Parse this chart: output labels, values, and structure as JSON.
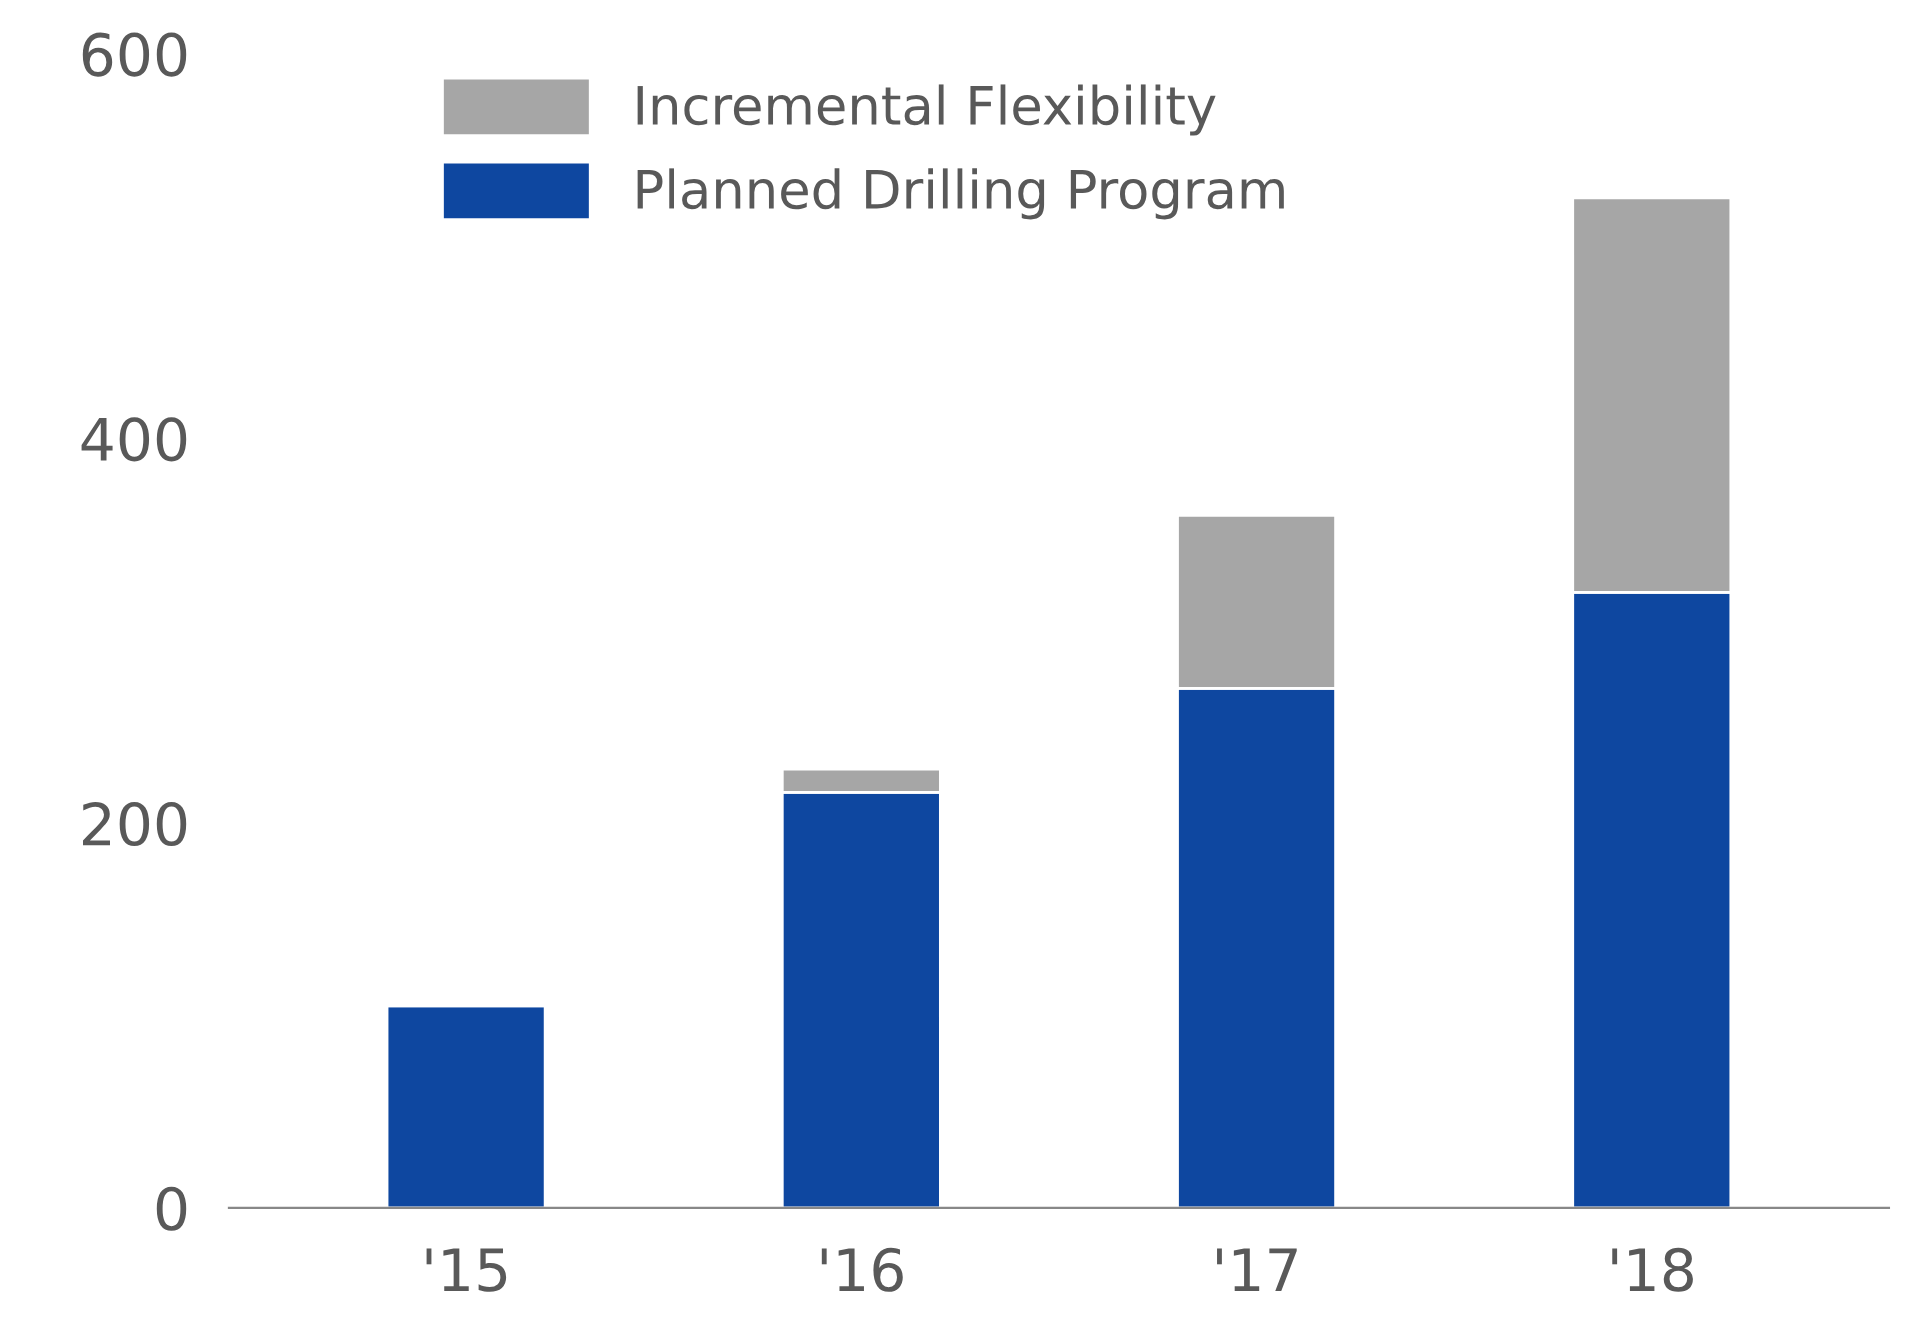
{
  "chart_data": {
    "type": "bar",
    "stacked": true,
    "categories": [
      "'15",
      "'16",
      "'17",
      "'18"
    ],
    "series": [
      {
        "name": "Planned Drilling Program",
        "color": "#0e47a0",
        "values": [
          105,
          216,
          270,
          320
        ]
      },
      {
        "name": "Incremental Flexibility",
        "color": "#a6a6a6",
        "values": [
          null,
          12,
          90,
          205
        ]
      }
    ],
    "ylim": [
      0,
      600
    ],
    "yticks": [
      0,
      200,
      400,
      600
    ],
    "grid": false,
    "legend": "top left"
  }
}
